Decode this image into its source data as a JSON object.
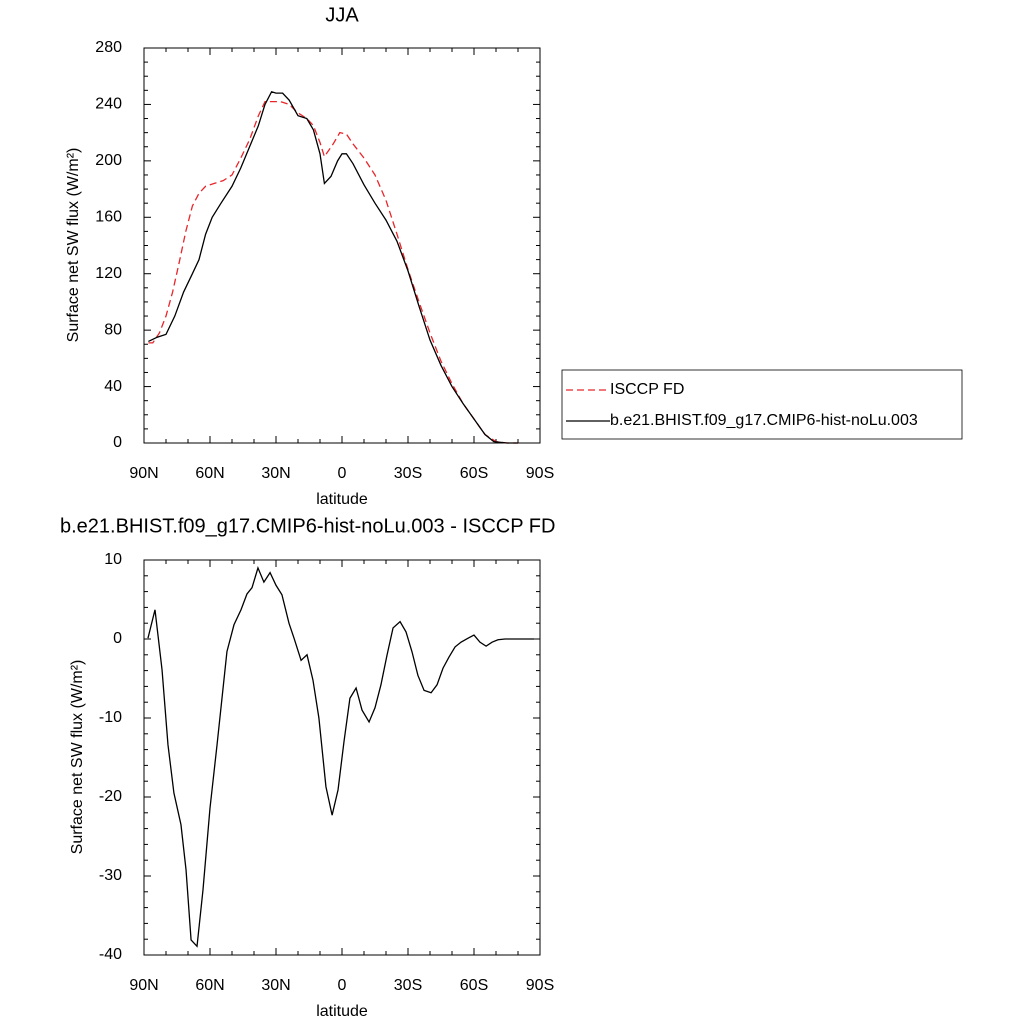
{
  "chart_data": [
    {
      "type": "line",
      "title": "JJA",
      "xlabel": "latitude",
      "ylabel": "Surface net SW flux (W/m²)",
      "xlim": [
        90,
        -90
      ],
      "ylim": [
        0,
        280
      ],
      "xticks": [
        {
          "value": 90,
          "label": "90N"
        },
        {
          "value": 60,
          "label": "60N"
        },
        {
          "value": 30,
          "label": "30N"
        },
        0,
        {
          "value": -30,
          "label": "30S"
        },
        {
          "value": -60,
          "label": "60S"
        },
        {
          "value": -90,
          "label": "90S"
        }
      ],
      "yticks": [
        0,
        40,
        80,
        120,
        160,
        200,
        240,
        280
      ],
      "legend": "outside-right",
      "series": [
        {
          "name": "ISCCP FD",
          "color": "#e8262b",
          "dashed": true,
          "x": [
            88,
            86,
            83,
            80,
            77,
            74,
            71,
            68,
            65,
            62,
            58,
            54,
            50,
            46,
            42,
            38,
            35,
            32,
            28,
            24,
            20,
            16,
            13,
            10,
            8,
            4,
            1,
            -2,
            -5,
            -10,
            -15,
            -20,
            -25,
            -30,
            -35,
            -40,
            -45,
            -50,
            -55,
            -60,
            -65,
            -70,
            -75,
            -80
          ],
          "values": [
            71,
            71,
            78,
            90,
            107,
            128,
            150,
            168,
            177,
            182,
            184,
            186,
            190,
            202,
            215,
            232,
            242,
            242,
            242,
            240,
            234,
            230,
            225,
            213,
            203,
            212,
            220,
            219,
            212,
            202,
            190,
            172,
            148,
            123,
            100,
            78,
            58,
            42,
            28,
            17,
            6,
            1,
            0,
            0
          ]
        },
        {
          "name": "b.e21.BHIST.f09_g17.CMIP6-hist-noLu.003",
          "color": "#000000",
          "dashed": false,
          "x": [
            88,
            84,
            80,
            76,
            72,
            68,
            65,
            62,
            59,
            55,
            50,
            46,
            42,
            38,
            35,
            32,
            30,
            27,
            24,
            20,
            16,
            13,
            10,
            8,
            5,
            2,
            0,
            -2,
            -5,
            -10,
            -15,
            -20,
            -25,
            -30,
            -35,
            -40,
            -45,
            -50,
            -55,
            -60,
            -65,
            -69,
            -75,
            -80
          ],
          "values": [
            72,
            75,
            77,
            90,
            107,
            120,
            130,
            148,
            160,
            170,
            182,
            195,
            210,
            225,
            240,
            249,
            248,
            248,
            243,
            232,
            230,
            222,
            205,
            184,
            189,
            200,
            205,
            205,
            198,
            183,
            170,
            158,
            143,
            122,
            97,
            73,
            55,
            40,
            28,
            17,
            6,
            1,
            0,
            0
          ]
        }
      ]
    },
    {
      "type": "line",
      "title": "b.e21.BHIST.f09_g17.CMIP6-hist-noLu.003 - ISCCP FD",
      "xlabel": "latitude",
      "ylabel": "Surface net SW flux (W/m²)",
      "xlim": [
        90,
        -90
      ],
      "ylim": [
        -40,
        10
      ],
      "xticks": [
        {
          "value": 90,
          "label": "90N"
        },
        {
          "value": 60,
          "label": "60N"
        },
        {
          "value": 30,
          "label": "30N"
        },
        0,
        {
          "value": -30,
          "label": "30S"
        },
        {
          "value": -60,
          "label": "60S"
        },
        {
          "value": -90,
          "label": "90S"
        }
      ],
      "yticks": [
        10,
        0,
        -10,
        -20,
        -30,
        -40
      ],
      "color": "#000000",
      "x": [
        88.2,
        85,
        81.8,
        79.1,
        76.4,
        73.2,
        70.9,
        68.6,
        65.9,
        63.2,
        60,
        56.8,
        52.3,
        49.1,
        45.9,
        43.2,
        40.9,
        38.2,
        35.5,
        32.7,
        30,
        27.3,
        24.1,
        21.8,
        18.6,
        15.9,
        13.2,
        10.5,
        7.3,
        4.5,
        1.8,
        -0.9,
        -3.6,
        -6.4,
        -9.1,
        -12.3,
        -15,
        -17.7,
        -20.5,
        -23.2,
        -26.4,
        -29.1,
        -31.8,
        -34.5,
        -37.3,
        -40.5,
        -43.2,
        -45.9,
        -48.6,
        -51.4,
        -54.1,
        -57.3,
        -60,
        -62.7,
        -65.5,
        -68.2,
        -70.9,
        -74.1,
        -80.9,
        -87.3
      ],
      "values": [
        0.1,
        3.7,
        -3.9,
        -13.4,
        -19.5,
        -23.5,
        -29.2,
        -38.1,
        -38.9,
        -31.8,
        -21.4,
        -13.4,
        -1.6,
        1.8,
        3.7,
        5.7,
        6.5,
        9.0,
        7.2,
        8.4,
        6.8,
        5.6,
        2.0,
        0.1,
        -2.7,
        -2.0,
        -5.2,
        -10.0,
        -18.7,
        -22.3,
        -19.1,
        -13.0,
        -7.5,
        -6.2,
        -9.0,
        -10.5,
        -8.7,
        -5.8,
        -2.0,
        1.4,
        2.2,
        0.9,
        -1.6,
        -4.6,
        -6.5,
        -6.8,
        -5.8,
        -3.7,
        -2.3,
        -1.0,
        -0.4,
        0.1,
        0.5,
        -0.4,
        -0.9,
        -0.4,
        -0.1,
        0,
        0,
        0
      ]
    }
  ]
}
